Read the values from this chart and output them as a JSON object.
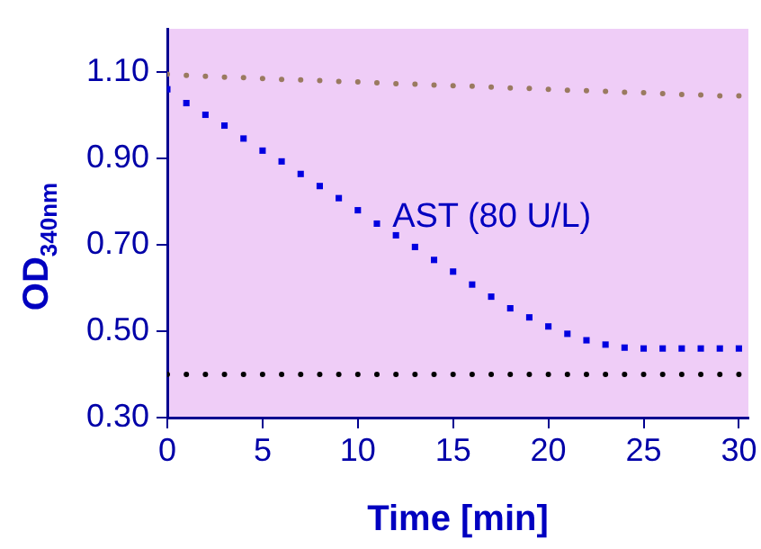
{
  "chart_data": {
    "type": "scatter",
    "xlabel": "Time [min]",
    "ylabel": "OD$_{340nm}$",
    "x": [
      0,
      1,
      2,
      3,
      4,
      5,
      6,
      7,
      8,
      9,
      10,
      11,
      12,
      13,
      14,
      15,
      16,
      17,
      18,
      19,
      20,
      21,
      22,
      23,
      24,
      25,
      26,
      27,
      28,
      29,
      30
    ],
    "xlim": [
      0,
      30.5
    ],
    "xticks": [
      0,
      5,
      10,
      15,
      20,
      25,
      30
    ],
    "ylim": [
      0.3,
      1.2
    ],
    "yticks": [
      {
        "value": 0.3,
        "label": "0.30"
      },
      {
        "value": 0.5,
        "label": "0.50"
      },
      {
        "value": 0.7,
        "label": "0.70"
      },
      {
        "value": 0.9,
        "label": "0.90"
      },
      {
        "value": 1.1,
        "label": "1.10"
      }
    ],
    "series": [
      {
        "color": "#9a7a60",
        "marker": "circle",
        "values": [
          1.095,
          1.092,
          1.09,
          1.088,
          1.087,
          1.085,
          1.083,
          1.082,
          1.08,
          1.078,
          1.077,
          1.075,
          1.073,
          1.072,
          1.07,
          1.068,
          1.067,
          1.065,
          1.063,
          1.062,
          1.06,
          1.058,
          1.057,
          1.055,
          1.053,
          1.052,
          1.05,
          1.048,
          1.047,
          1.045,
          1.045
        ]
      },
      {
        "name": "AST (80 U/L)",
        "color": "#0000e0",
        "marker": "square",
        "values": [
          1.06,
          1.028,
          1.001,
          0.976,
          0.946,
          0.918,
          0.893,
          0.864,
          0.836,
          0.808,
          0.78,
          0.749,
          0.722,
          0.695,
          0.665,
          0.638,
          0.608,
          0.58,
          0.553,
          0.532,
          0.511,
          0.494,
          0.479,
          0.469,
          0.462,
          0.46,
          0.46,
          0.46,
          0.46,
          0.46,
          0.46
        ]
      },
      {
        "color": "#000000",
        "marker": "circle",
        "values": [
          0.4,
          0.4,
          0.4,
          0.4,
          0.4,
          0.4,
          0.4,
          0.4,
          0.4,
          0.4,
          0.4,
          0.4,
          0.4,
          0.4,
          0.4,
          0.4,
          0.4,
          0.4,
          0.4,
          0.4,
          0.4,
          0.4,
          0.4,
          0.4,
          0.4,
          0.4,
          0.4,
          0.4,
          0.4,
          0.4,
          0.4
        ]
      }
    ]
  }
}
